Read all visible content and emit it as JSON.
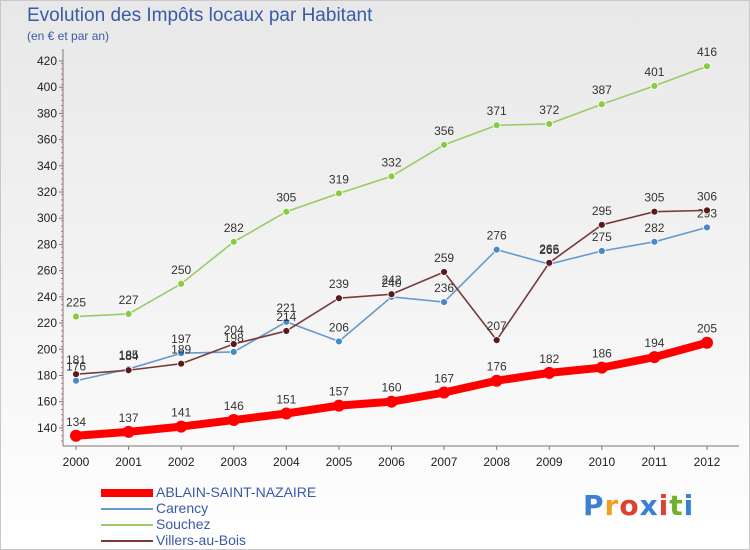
{
  "header": {
    "title": "Evolution des Impôts locaux par Habitant",
    "subtitle": "(en € et par an)"
  },
  "logo": {
    "text": "Proxiti"
  },
  "chart_data": {
    "type": "line",
    "title": "Evolution des Impôts locaux par Habitant",
    "subtitle": "(en € et par an)",
    "xlabel": "",
    "ylabel": "",
    "x": [
      "2000",
      "2001",
      "2002",
      "2003",
      "2004",
      "2005",
      "2006",
      "2007",
      "2008",
      "2009",
      "2010",
      "2011",
      "2012"
    ],
    "ylim": [
      120,
      430
    ],
    "yticks": [
      120,
      140,
      160,
      180,
      200,
      220,
      240,
      260,
      280,
      300,
      320,
      340,
      360,
      380,
      400,
      420
    ],
    "grid": false,
    "legend_position": "bottom-left",
    "series": [
      {
        "name": "ABLAIN-SAINT-NAZAIRE",
        "color": "#ff0000",
        "values": [
          134,
          137,
          141,
          146,
          151,
          157,
          160,
          167,
          176,
          182,
          186,
          194,
          205
        ]
      },
      {
        "name": "Carency",
        "color": "#6699cc",
        "values": [
          176,
          185,
          197,
          198,
          221,
          206,
          240,
          236,
          276,
          265,
          275,
          282,
          293
        ]
      },
      {
        "name": "Souchez",
        "color": "#99cc66",
        "values": [
          225,
          227,
          250,
          282,
          305,
          319,
          332,
          356,
          371,
          372,
          387,
          401,
          416
        ]
      },
      {
        "name": "Villers-au-Bois",
        "color": "#7a3a3a",
        "values": [
          181,
          184,
          189,
          204,
          214,
          239,
          242,
          259,
          207,
          266,
          295,
          305,
          306
        ]
      }
    ]
  }
}
